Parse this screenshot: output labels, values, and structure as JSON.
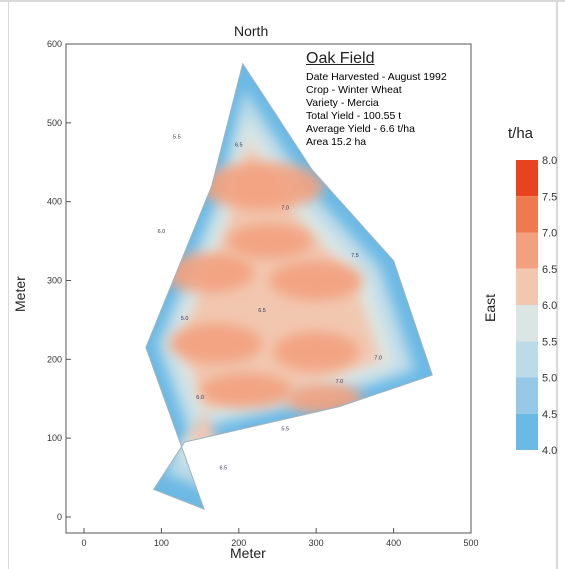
{
  "chart_data": {
    "type": "heatmap",
    "title": "Oak Field",
    "info": [
      "Date Harvested - August 1992",
      "Crop - Winter Wheat",
      "Variety - Mercia",
      "Total Yield - 100.55 t",
      "Average Yield - 6.6 t/ha",
      "Area 15.2 ha"
    ],
    "xlabel": "Meter",
    "ylabel": "Meter",
    "north_label": "North",
    "east_label": "East",
    "xlim": [
      0,
      500
    ],
    "ylim": [
      0,
      600
    ],
    "xticks": [
      "0",
      "100",
      "200",
      "300",
      "400",
      "500"
    ],
    "yticks": [
      "0",
      "100",
      "200",
      "300",
      "400",
      "500",
      "600"
    ],
    "field_boundary": [
      [
        155,
        10
      ],
      [
        80,
        215
      ],
      [
        165,
        420
      ],
      [
        205,
        575
      ],
      [
        295,
        440
      ],
      [
        400,
        325
      ],
      [
        450,
        180
      ],
      [
        330,
        140
      ],
      [
        130,
        95
      ],
      [
        90,
        35
      ]
    ],
    "yield_hotspots": [
      {
        "x": 230,
        "y": 420,
        "rx": 80,
        "ry": 30,
        "value": 7.0
      },
      {
        "x": 160,
        "y": 310,
        "rx": 60,
        "ry": 25,
        "value": 7.1
      },
      {
        "x": 300,
        "y": 300,
        "rx": 60,
        "ry": 25,
        "value": 7.0
      },
      {
        "x": 240,
        "y": 350,
        "rx": 55,
        "ry": 22,
        "value": 6.9
      },
      {
        "x": 170,
        "y": 220,
        "rx": 60,
        "ry": 25,
        "value": 7.1
      },
      {
        "x": 300,
        "y": 210,
        "rx": 55,
        "ry": 25,
        "value": 7.0
      },
      {
        "x": 210,
        "y": 160,
        "rx": 60,
        "ry": 22,
        "value": 7.1
      },
      {
        "x": 310,
        "y": 150,
        "rx": 50,
        "ry": 20,
        "value": 7.0
      },
      {
        "x": 225,
        "y": 100,
        "rx": 20,
        "ry": 12,
        "value": 7.8
      }
    ],
    "contour_labels": [
      "5.5",
      "6.0",
      "6.5",
      "7.0",
      "7.5",
      "5.0",
      "6.5",
      "7.0",
      "6.0",
      "5.5",
      "7.0",
      "6.5"
    ],
    "legend": {
      "title": "t/ha",
      "values": [
        "8.0",
        "7.5",
        "7.0",
        "6.5",
        "6.0",
        "5.5",
        "5.0",
        "4.5",
        "4.0"
      ],
      "colors": [
        "#e8431e",
        "#ef7a4f",
        "#f3a07e",
        "#f2c7b0",
        "#dbe6e4",
        "#bcdbe8",
        "#95c9e6",
        "#6bb9e5",
        "#4fb1e6"
      ]
    }
  }
}
